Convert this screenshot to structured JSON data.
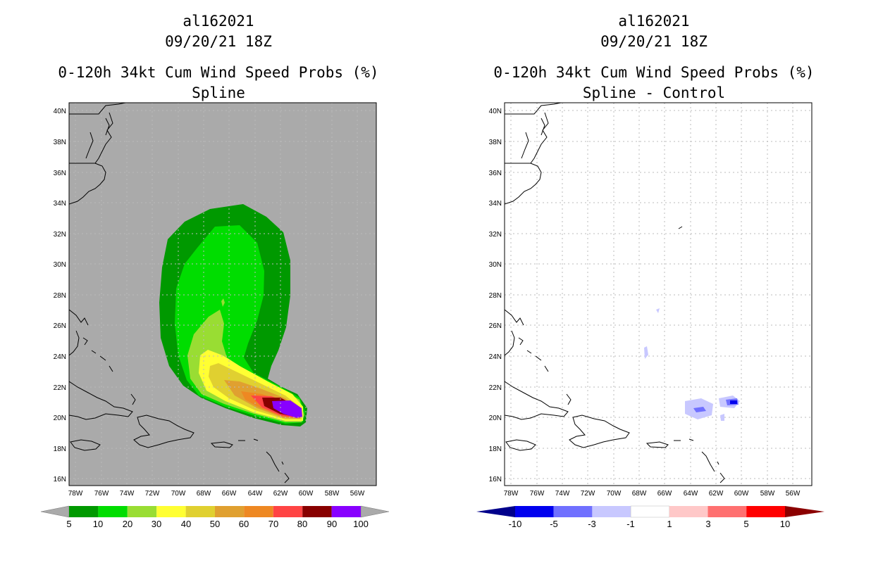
{
  "left_panel": {
    "storm_id": "al162021",
    "datetime": "09/20/21 18Z",
    "title": "0-120h 34kt Cum Wind Speed Probs (%)",
    "subtitle": "Spline",
    "colorbar": {
      "levels": [
        "5",
        "10",
        "20",
        "30",
        "40",
        "50",
        "60",
        "70",
        "80",
        "90",
        "100"
      ],
      "colors": [
        "#009900",
        "#00dd00",
        "#99dd33",
        "#ffff33",
        "#e0d030",
        "#e0a030",
        "#ee8822",
        "#ff4444",
        "#880000",
        "#8800ff"
      ]
    }
  },
  "right_panel": {
    "storm_id": "al162021",
    "datetime": "09/20/21 18Z",
    "title": "0-120h 34kt Cum Wind Speed Probs (%)",
    "subtitle": "Spline - Control",
    "colorbar": {
      "levels": [
        "-10",
        "-5",
        "-3",
        "-1",
        "1",
        "3",
        "5",
        "10"
      ],
      "colors": [
        "#0000ee",
        "#7070ff",
        "#c8c8ff",
        "#ffffff",
        "#ffc8c8",
        "#ff7070",
        "#ff0000"
      ]
    }
  },
  "axes": {
    "lat_labels": [
      "40N",
      "38N",
      "36N",
      "34N",
      "32N",
      "30N",
      "28N",
      "26N",
      "24N",
      "22N",
      "20N",
      "18N",
      "16N"
    ],
    "lon_labels": [
      "78W",
      "76W",
      "74W",
      "72W",
      "70W",
      "68W",
      "66W",
      "64W",
      "62W",
      "60W",
      "58W",
      "56W"
    ],
    "lat_range": [
      15.5,
      40.5
    ],
    "lon_range": [
      -78.5,
      -54.5
    ]
  },
  "colors": {
    "left_background": "#aaaaaa",
    "right_background": "#ffffff",
    "grid": "#bbbbbb"
  }
}
